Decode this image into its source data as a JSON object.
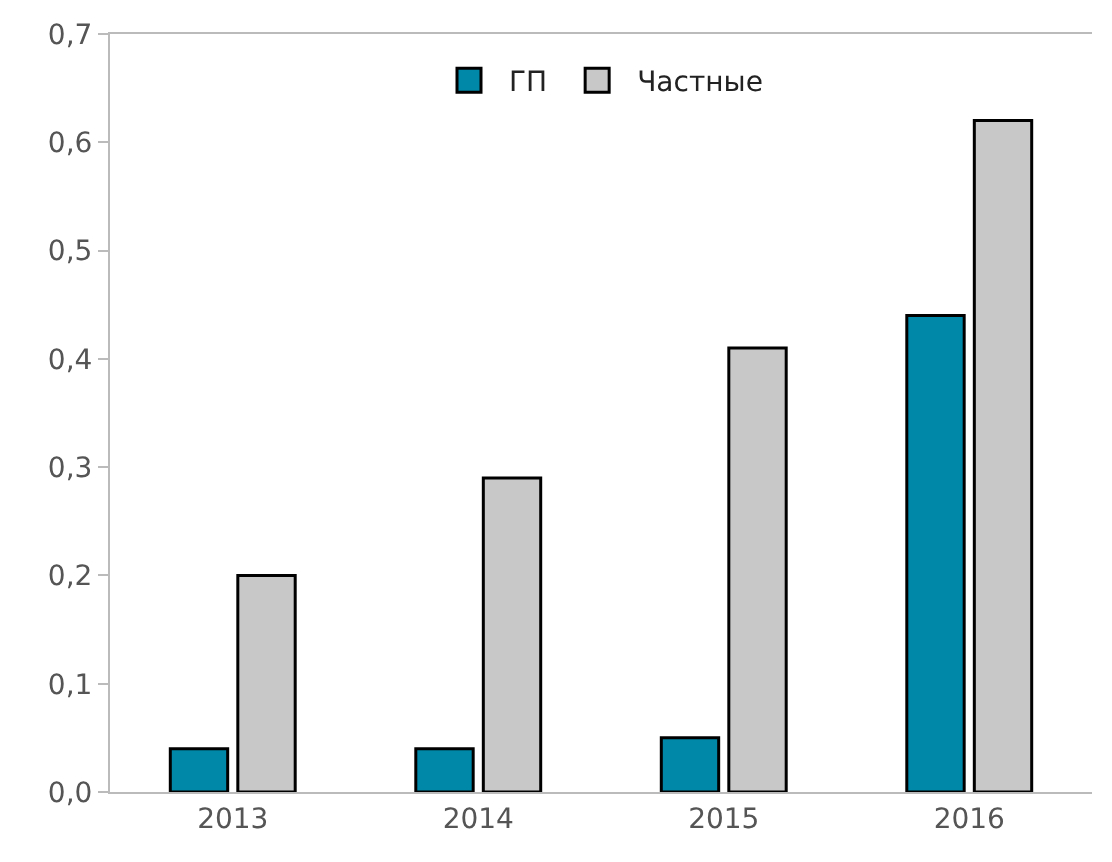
{
  "chart_data": {
    "type": "bar",
    "categories": [
      "2013",
      "2014",
      "2015",
      "2016"
    ],
    "series": [
      {
        "name": "ГП",
        "color": "#0088a8",
        "values": [
          0.04,
          0.04,
          0.05,
          0.44
        ]
      },
      {
        "name": "Частные",
        "color": "#c8c8c8",
        "values": [
          0.2,
          0.29,
          0.41,
          0.62
        ]
      }
    ],
    "ylim": [
      0,
      0.7
    ],
    "yticks": [
      {
        "value": 0,
        "label": "0,0"
      },
      {
        "value": 0.1,
        "label": "0,1"
      },
      {
        "value": 0.2,
        "label": "0,2"
      },
      {
        "value": 0.3,
        "label": "0,3"
      },
      {
        "value": 0.4,
        "label": "0,4"
      },
      {
        "value": 0.5,
        "label": "0,5"
      },
      {
        "value": 0.6,
        "label": "0,6"
      },
      {
        "value": 0.7,
        "label": "0,7"
      }
    ],
    "legend": "top"
  }
}
